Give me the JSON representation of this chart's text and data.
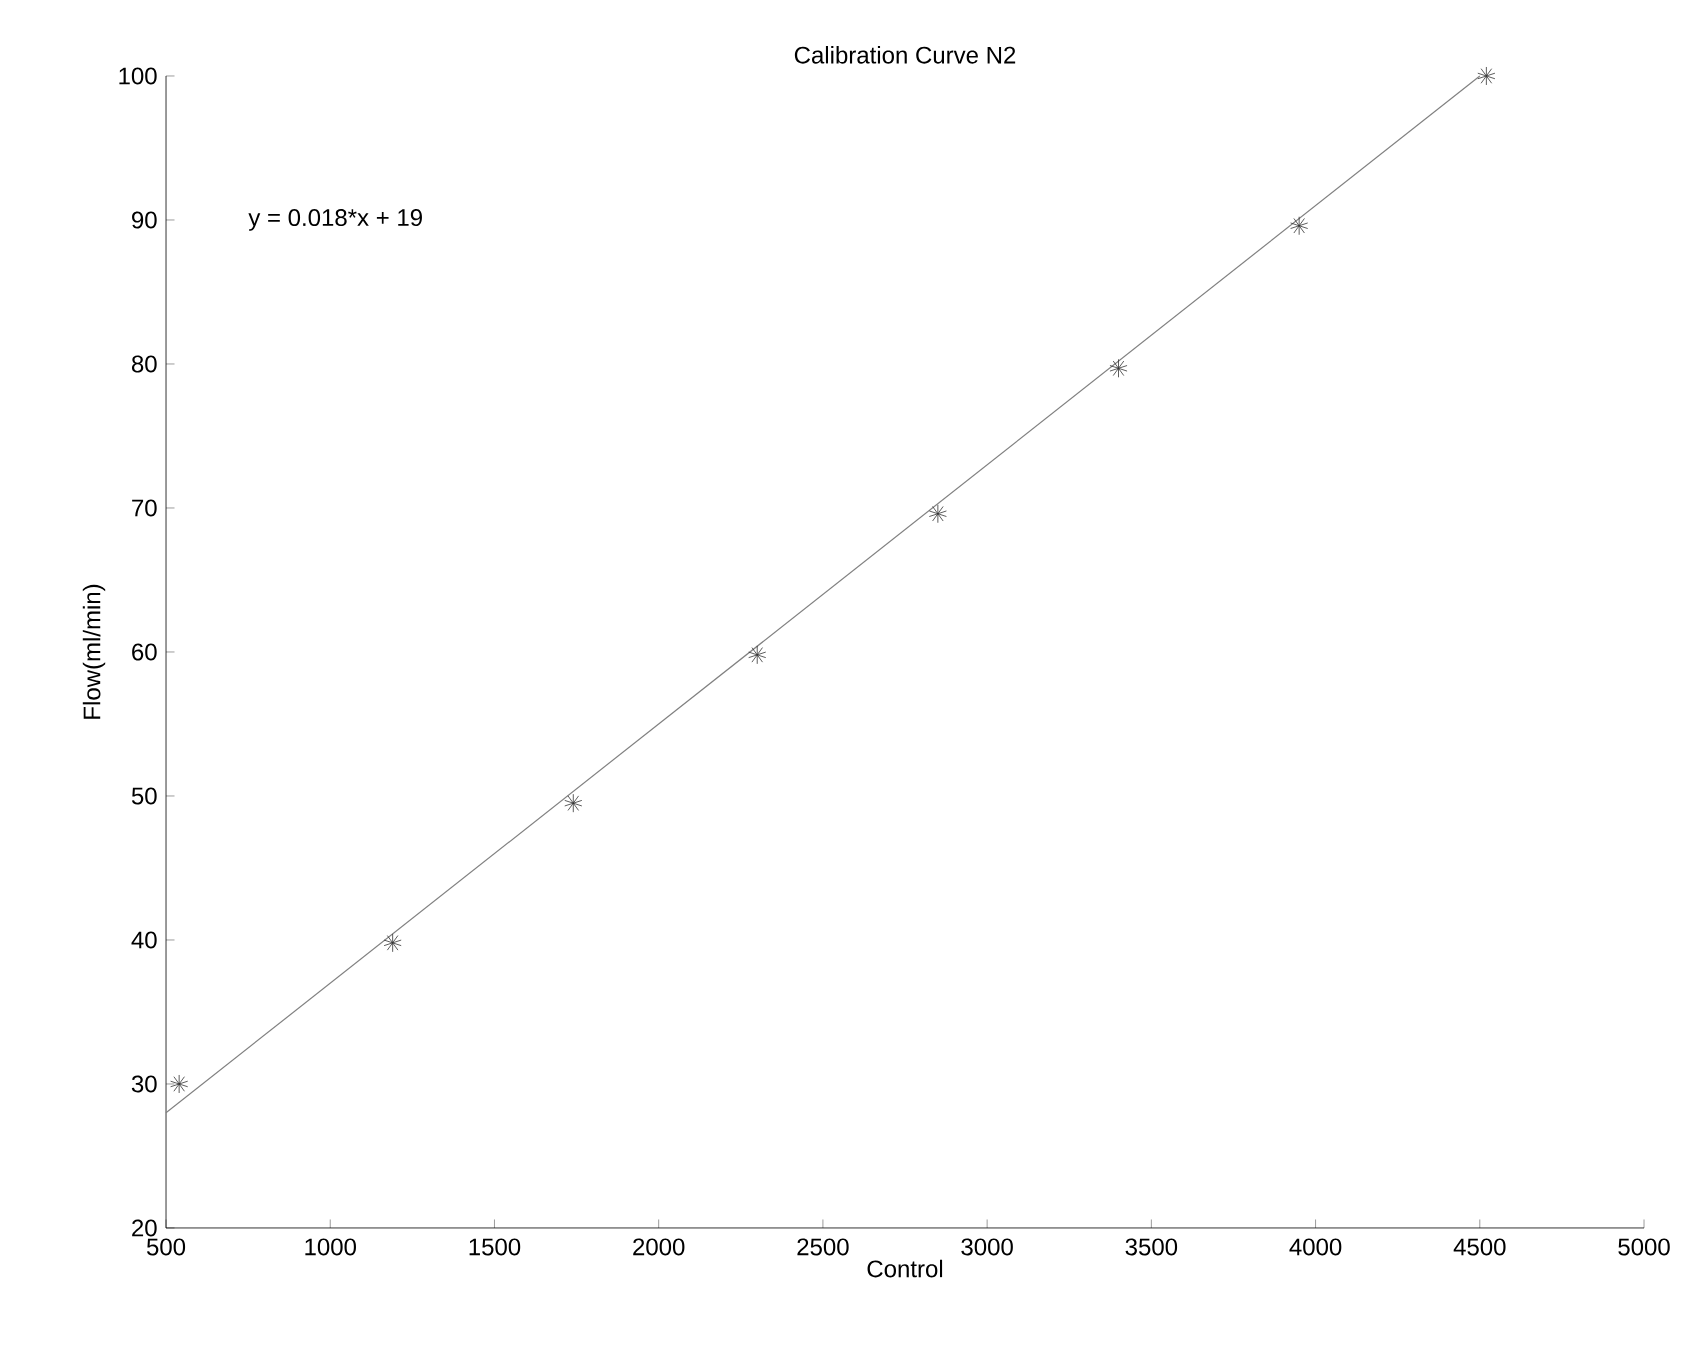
{
  "chart_data": {
    "type": "scatter",
    "title": "Calibration Curve N2",
    "xlabel": "Control",
    "ylabel": "Flow(ml/min)",
    "annotations": [
      "y = 0.018*x + 19"
    ],
    "series": [
      {
        "type": "scatter",
        "marker": "cross",
        "color": "#333333",
        "x": [
          540,
          1190,
          1740,
          2300,
          2850,
          3400,
          3950,
          4520
        ],
        "values": [
          30,
          39.8,
          49.5,
          59.8,
          69.6,
          79.7,
          89.6,
          100
        ]
      },
      {
        "type": "line",
        "marker": "none",
        "color": "#808080",
        "x": [
          500,
          4500
        ],
        "values": [
          28,
          100
        ]
      }
    ],
    "xlim": [
      500,
      5000
    ],
    "ylim": [
      20,
      100
    ],
    "xticks": [
      500,
      1000,
      1500,
      2000,
      2500,
      3000,
      3500,
      4000,
      4500,
      5000
    ],
    "yticks": [
      20,
      30,
      40,
      50,
      60,
      70,
      80,
      90,
      100
    ],
    "grid": false
  }
}
